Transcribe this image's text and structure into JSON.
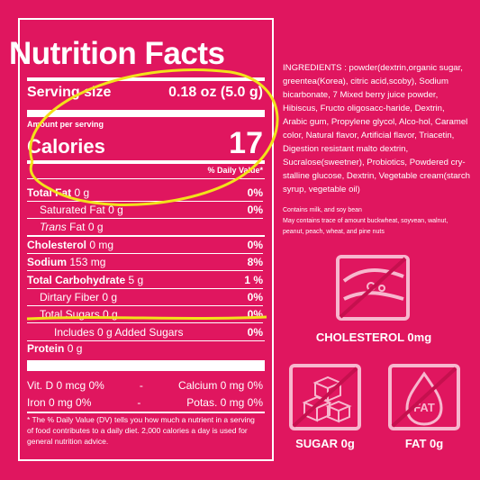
{
  "facts": {
    "title": "Nutrition Facts",
    "serving_label": "Serving size",
    "serving_value": "0.18 oz (5.0 g)",
    "amount_per_serving": "Amount per serving",
    "calories_label": "Calories",
    "calories_value": "17",
    "daily_value_header": "% Daily Value*",
    "rows": [
      {
        "label": "Total Fat",
        "amount": "0 g",
        "dv": "0%"
      },
      {
        "label": "Saturated Fat",
        "amount": "0 g",
        "dv": "0%"
      },
      {
        "label": "Trans",
        "label_suffix": "Fat",
        "amount": "0 g",
        "dv": ""
      },
      {
        "label": "Cholesterol",
        "amount": "0 mg",
        "dv": "0%"
      },
      {
        "label": "Sodium",
        "amount": "153 mg",
        "dv": "8%"
      },
      {
        "label": "Total Carbohydrate",
        "amount": "5 g",
        "dv": "1 %"
      },
      {
        "label": "Dirtary Fiber",
        "amount": "0 g",
        "dv": "0%"
      },
      {
        "label": "Total Sugars",
        "amount": "0 g",
        "dv": "0%"
      },
      {
        "label": "Includes 0 g Added Sugars",
        "amount": "",
        "dv": "0%"
      },
      {
        "label": "Protein",
        "amount": "0 g",
        "dv": ""
      }
    ],
    "vitamins": [
      {
        "left": "Vit. D 0 mcg 0%",
        "sep": "-",
        "right": "Calcium 0 mg 0%"
      },
      {
        "left": "Iron 0 mg 0%",
        "sep": "-",
        "right": "Potas. 0 mg 0%"
      }
    ],
    "footnote": "* The % Daily Value (DV) tells you how much a nutrient in a serving of food contributes to a daily diet. 2,000 calories a day is used for general nutrition advice."
  },
  "ingredients": {
    "text": "INGREDIENTS : powder(dextrin,organic sugar, greentea(Korea), citric acid,scoby), Sodium bicarbonate, 7 Mixed berry juice powder, Hibiscus, Fructo oligosacc-haride, Dextrin, Arabic gum, Propylene glycol, Alco-hol, Caramel color, Natural flavor, Artificial flavor, Triacetin, Digestion resistant malto dextrin, Sucralose(sweetner), Probiotics, Powdered cry-stalline glucose, Dextrin, Vegetable cream(starch syrup, vegetable oil)",
    "contains": "Contains milk, and soy bean",
    "may_contain": "May contains trace of amount buckwheat, soyvean, walnut, peanut, peach, wheat, and pine nuts"
  },
  "badges": {
    "cholesterol": "CHOLESTEROL 0mg",
    "sugar": "SUGAR 0g",
    "fat": "FAT 0g",
    "fat_icon_text": "FAT"
  },
  "colors": {
    "background": "#e0165f",
    "text": "#ffffff",
    "highlight": "#f2e21a"
  }
}
